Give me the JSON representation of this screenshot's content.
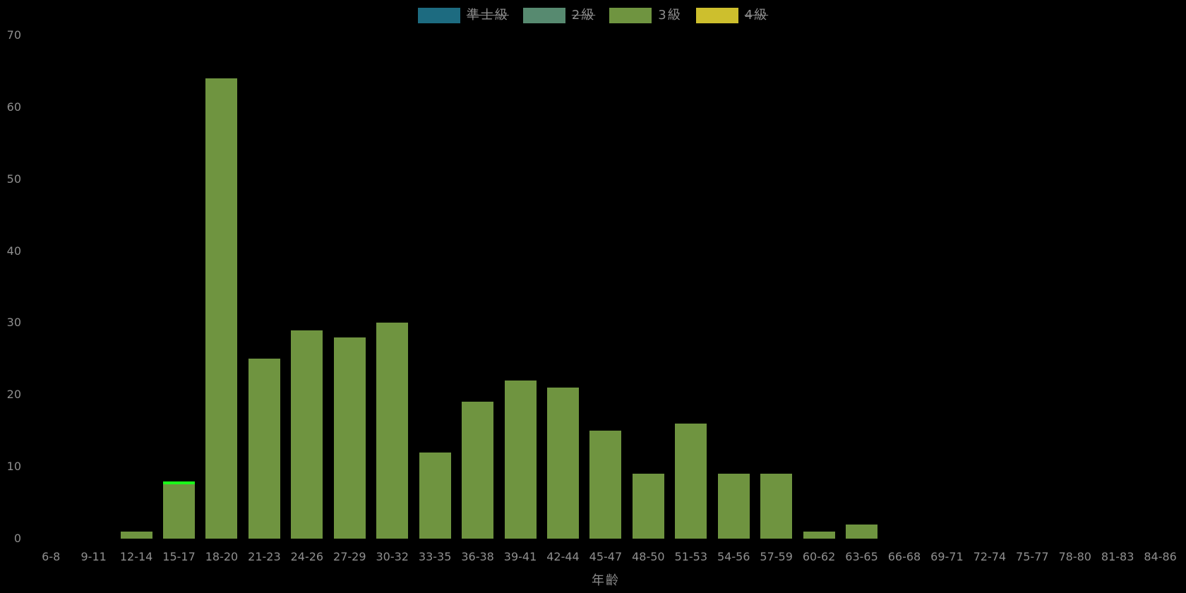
{
  "background": "#000000",
  "colors": {
    "tick_text": "#8f8f8f",
    "legend_text": "#8c8c8c",
    "bar_fill": "#6f9440",
    "highlight_edge": "#1aff1a"
  },
  "chart_data": {
    "type": "bar",
    "title": "",
    "xlabel": "年齡",
    "ylabel": "",
    "categories": [
      "6-8",
      "9-11",
      "12-14",
      "15-17",
      "18-20",
      "21-23",
      "24-26",
      "27-29",
      "30-32",
      "33-35",
      "36-38",
      "39-41",
      "42-44",
      "45-47",
      "48-50",
      "51-53",
      "54-56",
      "57-59",
      "60-62",
      "63-65",
      "66-68",
      "69-71",
      "72-74",
      "75-77",
      "78-80",
      "81-83",
      "84-86"
    ],
    "series": [
      {
        "name": "準士級",
        "color": "#1d6b80",
        "hidden": true,
        "values": []
      },
      {
        "name": "2級",
        "color": "#578a70",
        "hidden": true,
        "values": []
      },
      {
        "name": "3級",
        "color": "#6f9440",
        "hidden": false,
        "values": [
          0,
          0,
          1,
          8,
          64,
          25,
          29,
          28,
          30,
          12,
          19,
          22,
          21,
          15,
          9,
          16,
          9,
          9,
          1,
          2,
          0,
          0,
          0,
          0,
          0,
          0,
          0
        ]
      },
      {
        "name": "4級",
        "color": "#cdbf2d",
        "hidden": true,
        "values": []
      }
    ],
    "ylim": [
      0,
      70
    ],
    "yticks": [
      0,
      10,
      20,
      30,
      40,
      50,
      60,
      70
    ],
    "grid": false,
    "legend_position": "top",
    "highlight": {
      "category": "15-17",
      "series": "3級",
      "style": "bright-green-top-edge",
      "color": "#1aff1a"
    }
  }
}
